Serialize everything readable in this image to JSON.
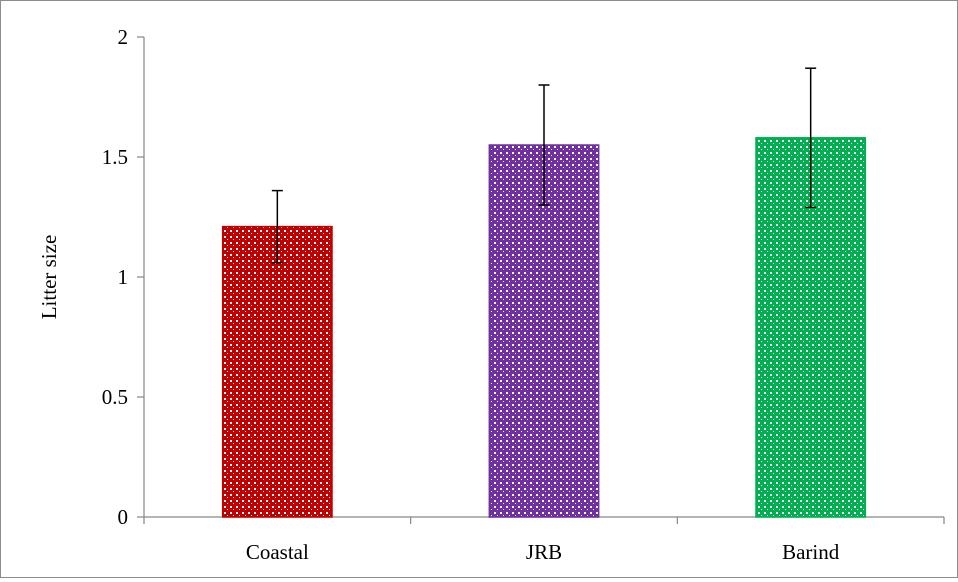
{
  "chart_data": {
    "type": "bar",
    "title": "",
    "xlabel": "",
    "ylabel": "Litter size",
    "ylim": [
      0,
      2
    ],
    "yticks": [
      "0",
      "0.5",
      "1",
      "1.5",
      "2"
    ],
    "categories": [
      "Coastal",
      "JRB",
      "Barind"
    ],
    "values": [
      1.21,
      1.55,
      1.58
    ],
    "error_low": [
      1.06,
      1.3,
      1.29
    ],
    "error_high": [
      1.36,
      1.8,
      1.87
    ],
    "colors": [
      "#c00000",
      "#7030a0",
      "#00b050"
    ],
    "grid": false,
    "legend": "none"
  }
}
